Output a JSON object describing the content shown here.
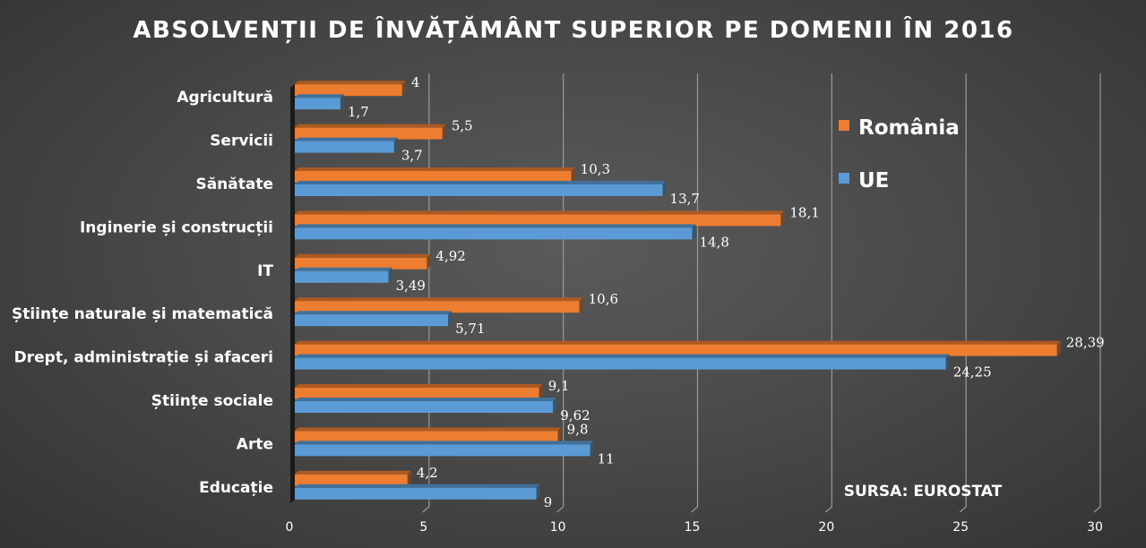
{
  "chart_data": {
    "type": "bar",
    "orientation": "horizontal",
    "title": "ABSOLVENȚII DE ÎNVĂȚĂMÂNT SUPERIOR PE DOMENII ÎN 2016",
    "categories": [
      "Agricultură",
      "Servicii",
      "Sănătate",
      "Inginerie și construcții",
      "IT",
      "Științe naturale și matematică",
      "Drept, administrație și afaceri",
      "Științe sociale",
      "Arte",
      "Educație"
    ],
    "series": [
      {
        "name": "România",
        "color": "#ED7D31",
        "values": [
          4,
          5.5,
          10.3,
          18.1,
          4.92,
          10.6,
          28.39,
          9.1,
          9.8,
          4.2
        ],
        "labels": [
          "4",
          "5,5",
          "10,3",
          "18,1",
          "4,92",
          "10,6",
          "28,39",
          "9,1",
          "9,8",
          "4,2"
        ]
      },
      {
        "name": "UE",
        "color": "#5B9BD5",
        "values": [
          1.7,
          3.7,
          13.7,
          14.8,
          3.49,
          5.71,
          24.25,
          9.62,
          11,
          9
        ],
        "labels": [
          "1,7",
          "3,7",
          "13,7",
          "14,8",
          "3,49",
          "5,71",
          "24,25",
          "9,62",
          "11",
          "9"
        ]
      }
    ],
    "xlim": [
      0,
      30
    ],
    "xticks": [
      0,
      5,
      10,
      15,
      20,
      25,
      30
    ],
    "xlabel": "",
    "ylabel": "",
    "grid": "vertical",
    "legend_position": "top-right",
    "source": "SURSA: EUROSTAT"
  }
}
